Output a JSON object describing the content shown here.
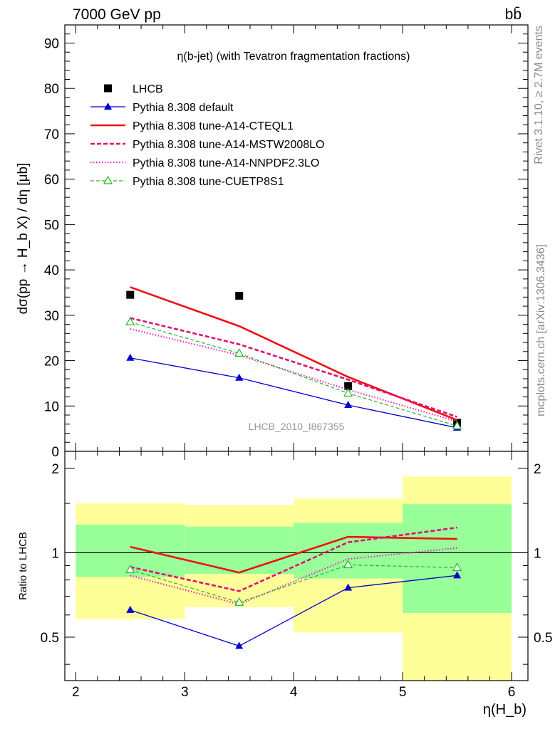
{
  "header": {
    "left": "7000 GeV pp",
    "right": "bb̄"
  },
  "side_labels": {
    "rivet": "Rivet 3.1.10, ≥ 2.7M events",
    "mcplots": "mcplots.cern.ch [arXiv:1306.3436]"
  },
  "chart_data": [
    {
      "type": "line",
      "panel": "main",
      "title": "η(b-jet) (with Tevatron fragmentation fractions)",
      "watermark": "LHCB_2010_I867355",
      "ylabel": "dσ(pp → H_b X) / dη [μb]",
      "xlim": [
        1.9,
        6.15
      ],
      "ylim": [
        0,
        94
      ],
      "y_ticks": [
        0,
        10,
        20,
        30,
        40,
        50,
        60,
        70,
        80,
        90
      ],
      "x": [
        2.5,
        3.5,
        4.5,
        5.5
      ],
      "legend_position": "top-left",
      "series": [
        {
          "name": "LHCB",
          "style": "data",
          "color": "#000000",
          "values": [
            34.5,
            34.3,
            14.4,
            6.3
          ]
        },
        {
          "name": "Pythia 8.308 default",
          "style": "solid-thin-filled-triangle",
          "color": "#0000cc",
          "values": [
            20.6,
            16.2,
            10.2,
            5.2
          ]
        },
        {
          "name": "Pythia 8.308 tune-A14-CTEQL1",
          "style": "solid-thick",
          "color": "#ee1111",
          "values": [
            36.2,
            27.6,
            16.4,
            6.9
          ]
        },
        {
          "name": "Pythia 8.308 tune-A14-MSTW2008LO",
          "style": "dashed-thick",
          "color": "#dd1177",
          "values": [
            29.4,
            23.6,
            15.8,
            7.6
          ]
        },
        {
          "name": "Pythia 8.308 tune-A14-NNPDF2.3LO",
          "style": "dotted",
          "color": "#ee22cc",
          "values": [
            27.0,
            21.2,
            13.6,
            6.6
          ]
        },
        {
          "name": "Pythia 8.308 tune-CUETP8S1",
          "style": "dashed-thin-open-triangle",
          "color": "#22bb22",
          "values": [
            28.5,
            21.6,
            12.8,
            5.6
          ]
        }
      ]
    },
    {
      "type": "line",
      "panel": "ratio",
      "ylabel": "Ratio to LHCB",
      "xlabel": "η(H_b)",
      "xlim": [
        1.9,
        6.15
      ],
      "ylim": [
        0.35,
        2.3
      ],
      "y_ticks": [
        0.5,
        1,
        2
      ],
      "x_ticks": [
        2,
        3,
        4,
        5,
        6
      ],
      "x": [
        2.5,
        3.5,
        4.5,
        5.5
      ],
      "bins": [
        {
          "lo": 2,
          "hi": 3,
          "band1": [
            0.82,
            1.26
          ],
          "band2": [
            0.58,
            1.5
          ]
        },
        {
          "lo": 3,
          "hi": 4,
          "band1": [
            0.84,
            1.24
          ],
          "band2": [
            0.64,
            1.48
          ]
        },
        {
          "lo": 4,
          "hi": 5,
          "band1": [
            0.81,
            1.28
          ],
          "band2": [
            0.52,
            1.56
          ]
        },
        {
          "lo": 5,
          "hi": 6,
          "band1": [
            0.61,
            1.49
          ],
          "band2": [
            0.35,
            1.87
          ]
        }
      ],
      "series": [
        {
          "name": "Pythia 8.308 default",
          "values": [
            0.625,
            0.465,
            0.75,
            0.83
          ]
        },
        {
          "name": "Pythia 8.308 tune-A14-CTEQL1",
          "values": [
            1.05,
            0.85,
            1.14,
            1.12
          ]
        },
        {
          "name": "Pythia 8.308 tune-A14-MSTW2008LO",
          "values": [
            0.89,
            0.73,
            1.09,
            1.23
          ]
        },
        {
          "name": "Pythia 8.308 tune-A14-NNPDF2.3LO",
          "values": [
            0.83,
            0.655,
            0.95,
            1.04
          ]
        },
        {
          "name": "Pythia 8.308 tune-CUETP8S1",
          "values": [
            0.87,
            0.665,
            0.905,
            0.885
          ]
        }
      ]
    }
  ]
}
